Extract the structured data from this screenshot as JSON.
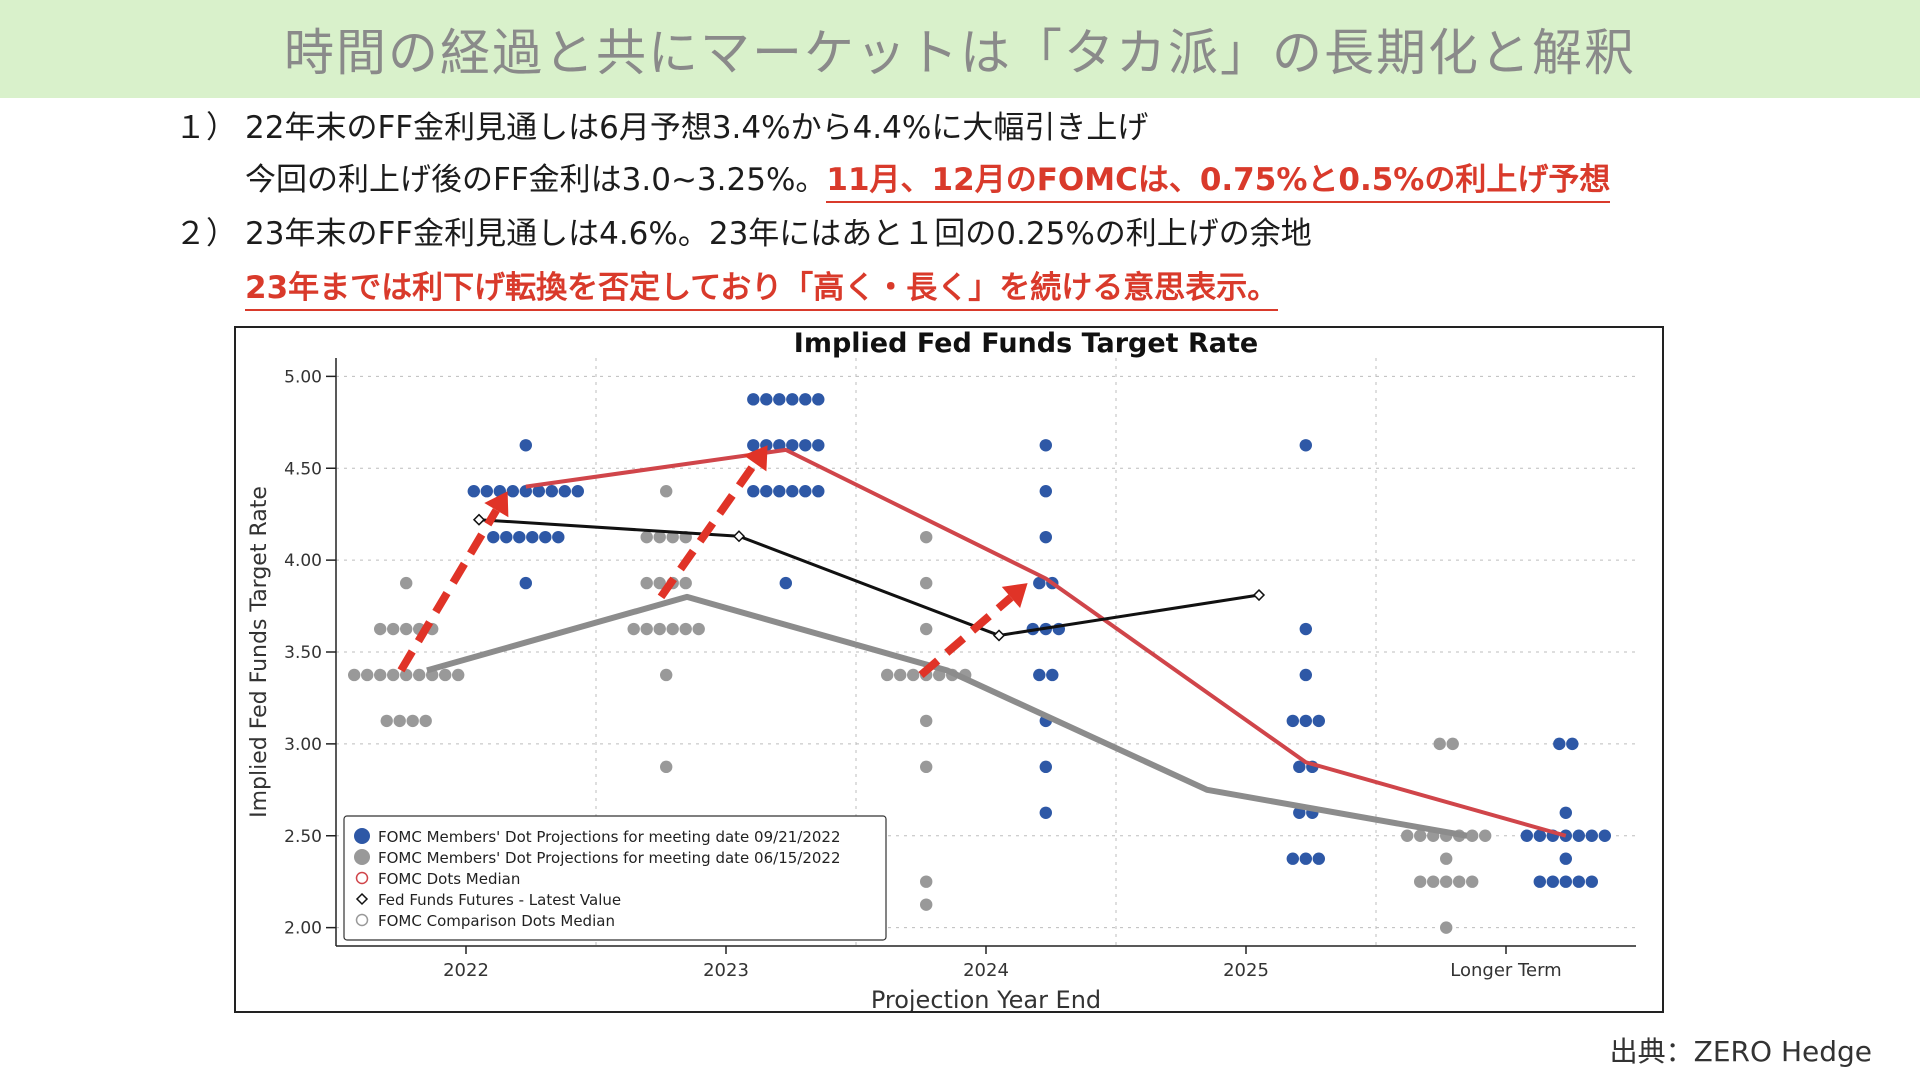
{
  "header": {
    "title": "時間の経過と共にマーケットは「タカ派」の長期化と解釈"
  },
  "notes": {
    "line1_num": "１）",
    "line1_text": "22年末のFF金利見通しは6月予想3.4%から4.4%に大幅引き上げ",
    "line2_text": "今回の利上げ後のFF金利は3.0~3.25%。",
    "line2_highlight": "11月、12月のFOMCは、0.75%と0.5%の利上げ予想",
    "line3_num": "２）",
    "line3_text": "23年末のFF金利見通しは4.6%。23年にはあと１回の0.25%の利上げの余地",
    "line4_highlight": "23年までは利下げ転換を否定しており「高く・長く」を続ける意思表示。"
  },
  "source": "出典：ZERO Hedge",
  "colors": {
    "sep_dots": "#2e58a6",
    "jun_dots": "#999999",
    "median_line": "#d0454a",
    "futures_line": "#111111",
    "comparison_line": "#8c8c8c",
    "arrow": "#e03327",
    "header_band": "#d9f1cb"
  },
  "chart_data": {
    "type": "scatter",
    "title": "Implied Fed Funds Target Rate",
    "xlabel": "Projection Year End",
    "ylabel": "Implied Fed Funds Target Rate",
    "categories": [
      "2022",
      "2023",
      "2024",
      "2025",
      "Longer Term"
    ],
    "ylim": [
      1.9,
      5.1
    ],
    "y_ticks": [
      "5.00",
      "4.50",
      "4.00",
      "3.50",
      "3.00",
      "2.50",
      "2.00"
    ],
    "grid": true,
    "legend_position": "bottom-left",
    "legend": [
      "FOMC Members' Dot Projections for meeting date 09/21/2022",
      "FOMC Members' Dot Projections for meeting date 06/15/2022",
      "FOMC Dots Median",
      "Fed Funds Futures - Latest Value",
      "FOMC Comparison Dots Median"
    ],
    "dots_sep": [
      {
        "category": "2022",
        "levels": [
          [
            4.625,
            1
          ],
          [
            4.375,
            9
          ],
          [
            4.125,
            6
          ],
          [
            3.875,
            1
          ]
        ]
      },
      {
        "category": "2023",
        "levels": [
          [
            4.875,
            6
          ],
          [
            4.625,
            6
          ],
          [
            4.375,
            6
          ],
          [
            3.875,
            1
          ]
        ]
      },
      {
        "category": "2024",
        "levels": [
          [
            4.625,
            1
          ],
          [
            4.375,
            1
          ],
          [
            4.125,
            1
          ],
          [
            3.875,
            2
          ],
          [
            3.625,
            3
          ],
          [
            3.375,
            2
          ],
          [
            3.125,
            1
          ],
          [
            2.875,
            1
          ],
          [
            2.625,
            1
          ]
        ]
      },
      {
        "category": "2025",
        "levels": [
          [
            4.625,
            1
          ],
          [
            3.625,
            1
          ],
          [
            3.375,
            1
          ],
          [
            3.125,
            3
          ],
          [
            2.875,
            2
          ],
          [
            2.625,
            2
          ],
          [
            2.375,
            3
          ]
        ]
      },
      {
        "category": "Longer Term",
        "levels": [
          [
            3.0,
            2
          ],
          [
            2.625,
            1
          ],
          [
            2.5,
            7
          ],
          [
            2.375,
            1
          ],
          [
            2.25,
            5
          ]
        ]
      }
    ],
    "dots_jun": [
      {
        "category": "2022",
        "levels": [
          [
            3.875,
            1
          ],
          [
            3.625,
            5
          ],
          [
            3.375,
            9
          ],
          [
            3.125,
            4
          ]
        ]
      },
      {
        "category": "2023",
        "levels": [
          [
            4.375,
            1
          ],
          [
            4.125,
            4
          ],
          [
            3.875,
            4
          ],
          [
            3.625,
            6
          ],
          [
            3.375,
            1
          ],
          [
            2.875,
            1
          ]
        ]
      },
      {
        "category": "2024",
        "levels": [
          [
            4.125,
            1
          ],
          [
            3.875,
            1
          ],
          [
            3.625,
            1
          ],
          [
            3.375,
            7
          ],
          [
            3.125,
            1
          ],
          [
            2.875,
            1
          ],
          [
            2.25,
            1
          ],
          [
            2.125,
            1
          ]
        ]
      },
      {
        "category": "Longer Term",
        "levels": [
          [
            3.0,
            2
          ],
          [
            2.5,
            7
          ],
          [
            2.375,
            1
          ],
          [
            2.25,
            5
          ],
          [
            2.0,
            1
          ]
        ]
      }
    ],
    "series": [
      {
        "name": "FOMC Dots Median",
        "x": [
          "2022",
          "2023",
          "2024",
          "2025",
          "Longer Term"
        ],
        "values": [
          4.4,
          4.6,
          3.9,
          2.9,
          2.5
        ]
      },
      {
        "name": "Fed Funds Futures - Latest Value",
        "x": [
          "2022",
          "2023",
          "2024",
          "2025"
        ],
        "values": [
          4.22,
          4.13,
          3.59,
          3.81
        ]
      },
      {
        "name": "FOMC Comparison Dots Median",
        "x": [
          "2022",
          "2023",
          "2024",
          "2025",
          "Longer Term"
        ],
        "values": [
          3.4,
          3.8,
          3.4,
          2.75,
          2.5
        ]
      }
    ],
    "annotations": [
      {
        "type": "arrow",
        "from": [
          "2022",
          3.4
        ],
        "to": [
          "2022",
          4.375
        ]
      },
      {
        "type": "arrow",
        "from": [
          "2023",
          3.8
        ],
        "to": [
          "2023",
          4.625
        ]
      },
      {
        "type": "arrow",
        "from": [
          "2024",
          3.375
        ],
        "to": [
          "2024",
          3.875
        ]
      }
    ]
  }
}
